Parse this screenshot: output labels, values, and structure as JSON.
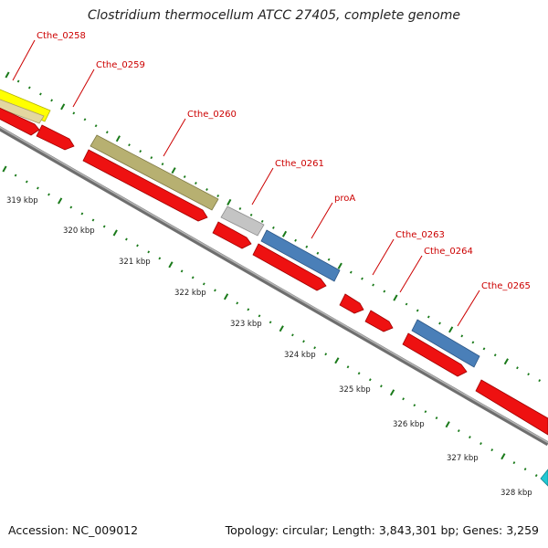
{
  "title": "Clostridium thermocellum ATCC 27405, complete genome",
  "footer": {
    "accession": "Accession: NC_009012",
    "summary": "Topology: circular; Length: 3,843,301 bp; Genes: 3,259"
  },
  "colors": {
    "red": "#ee1111",
    "olive": "#b7b071",
    "yellow": "#ffff00",
    "tan": "#e3d7a0",
    "silver": "#c4c4c4",
    "steelblue": "#4a7fb8",
    "cyan": "#22c8d4",
    "backbone": "#8a8a8a",
    "ticks": "#1a7a1a",
    "label_red": "#cc0000"
  },
  "scale_labels": [
    "319 kbp",
    "320 kbp",
    "321 kbp",
    "322 kbp",
    "323 kbp",
    "324 kbp",
    "325 kbp",
    "326 kbp",
    "327 kbp",
    "328 kbp"
  ],
  "gene_labels": [
    "Cthe_0258",
    "Cthe_0259",
    "Cthe_0260",
    "Cthe_0261",
    "proA",
    "Cthe_0263",
    "Cthe_0264",
    "Cthe_0265"
  ]
}
